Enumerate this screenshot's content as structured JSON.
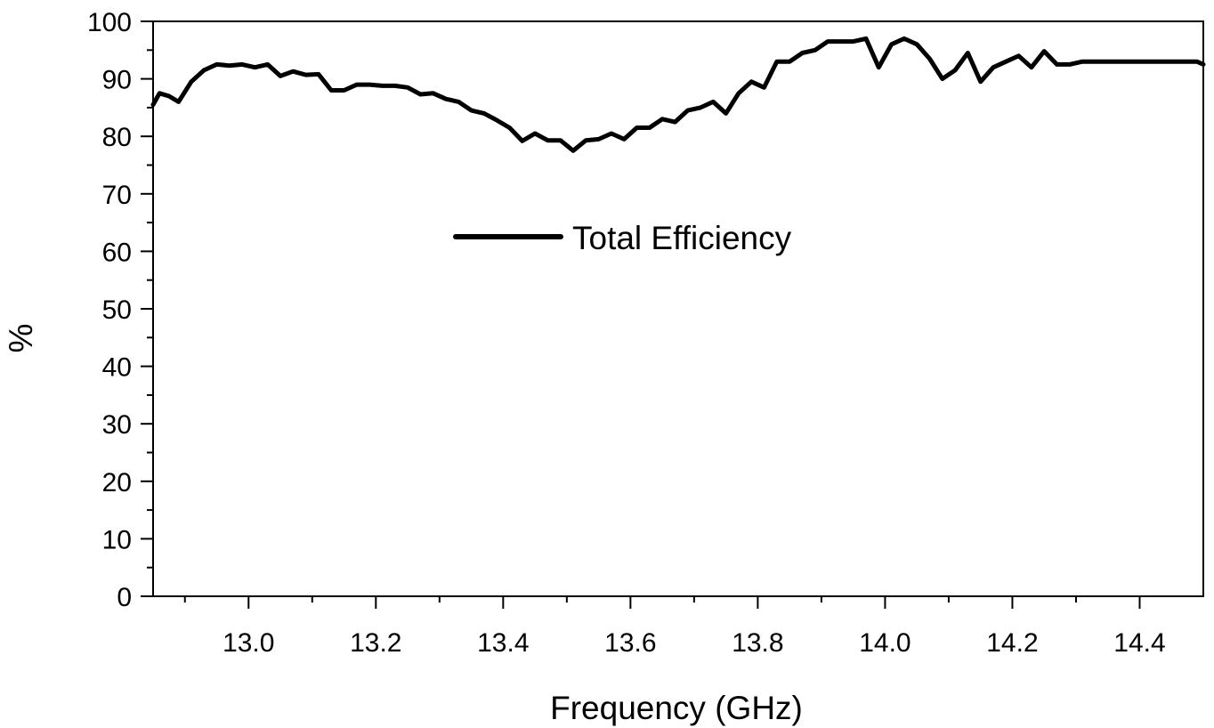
{
  "chart_data": {
    "type": "line",
    "title": "",
    "xlabel": "Frequency (GHz)",
    "ylabel": "%",
    "xlim": [
      12.85,
      14.5
    ],
    "ylim": [
      0,
      100
    ],
    "x_ticks": [
      13.0,
      13.2,
      13.4,
      13.6,
      13.8,
      14.0,
      14.2,
      14.4
    ],
    "x_tick_labels": [
      "13.0",
      "13.2",
      "13.4",
      "13.6",
      "13.8",
      "14.0",
      "14.2",
      "14.4"
    ],
    "y_ticks": [
      0,
      10,
      20,
      30,
      40,
      50,
      60,
      70,
      80,
      90,
      100
    ],
    "y_tick_labels": [
      "0",
      "10",
      "20",
      "30",
      "40",
      "50",
      "60",
      "70",
      "80",
      "90",
      "100"
    ],
    "grid": false,
    "legend": {
      "position": "center-top",
      "entries": [
        "Total Efficiency"
      ]
    },
    "series": [
      {
        "name": "Total Efficiency",
        "color": "#000000",
        "x": [
          12.85,
          12.86,
          12.875,
          12.89,
          12.91,
          12.93,
          12.95,
          12.97,
          12.99,
          13.01,
          13.03,
          13.05,
          13.07,
          13.09,
          13.11,
          13.13,
          13.15,
          13.17,
          13.19,
          13.21,
          13.23,
          13.25,
          13.27,
          13.29,
          13.31,
          13.33,
          13.35,
          13.37,
          13.39,
          13.41,
          13.43,
          13.45,
          13.47,
          13.49,
          13.51,
          13.53,
          13.55,
          13.57,
          13.59,
          13.61,
          13.63,
          13.65,
          13.67,
          13.69,
          13.71,
          13.73,
          13.75,
          13.77,
          13.79,
          13.81,
          13.83,
          13.85,
          13.87,
          13.89,
          13.91,
          13.93,
          13.95,
          13.97,
          13.99,
          14.01,
          14.03,
          14.05,
          14.07,
          14.09,
          14.11,
          14.13,
          14.15,
          14.17,
          14.19,
          14.21,
          14.23,
          14.25,
          14.27,
          14.29,
          14.31,
          14.33,
          14.35,
          14.37,
          14.39,
          14.41,
          14.43,
          14.45,
          14.47,
          14.49,
          14.5
        ],
        "values": [
          85.5,
          87.5,
          87.0,
          86.0,
          89.5,
          91.5,
          92.5,
          92.3,
          92.5,
          92.0,
          92.5,
          90.5,
          91.3,
          90.7,
          90.8,
          88.0,
          88.0,
          89.0,
          89.0,
          88.8,
          88.8,
          88.5,
          87.3,
          87.5,
          86.5,
          86.0,
          84.5,
          84.0,
          82.8,
          81.5,
          79.2,
          80.5,
          79.3,
          79.3,
          77.5,
          79.3,
          79.5,
          80.5,
          79.5,
          81.5,
          81.5,
          83.0,
          82.5,
          84.5,
          85.0,
          86.0,
          84.0,
          87.5,
          89.5,
          88.5,
          93.0,
          93.0,
          94.5,
          95.0,
          96.5,
          96.5,
          96.5,
          97.0,
          92.0,
          96.0,
          97.0,
          96.0,
          93.5,
          90.0,
          91.5,
          94.5,
          89.5,
          92.0,
          93.0,
          94.0,
          92.0,
          94.8,
          92.5,
          92.5,
          93.0,
          93.0,
          93.0,
          93.0,
          93.0,
          93.0,
          93.0,
          93.0,
          93.0,
          93.0,
          92.5
        ]
      }
    ]
  }
}
